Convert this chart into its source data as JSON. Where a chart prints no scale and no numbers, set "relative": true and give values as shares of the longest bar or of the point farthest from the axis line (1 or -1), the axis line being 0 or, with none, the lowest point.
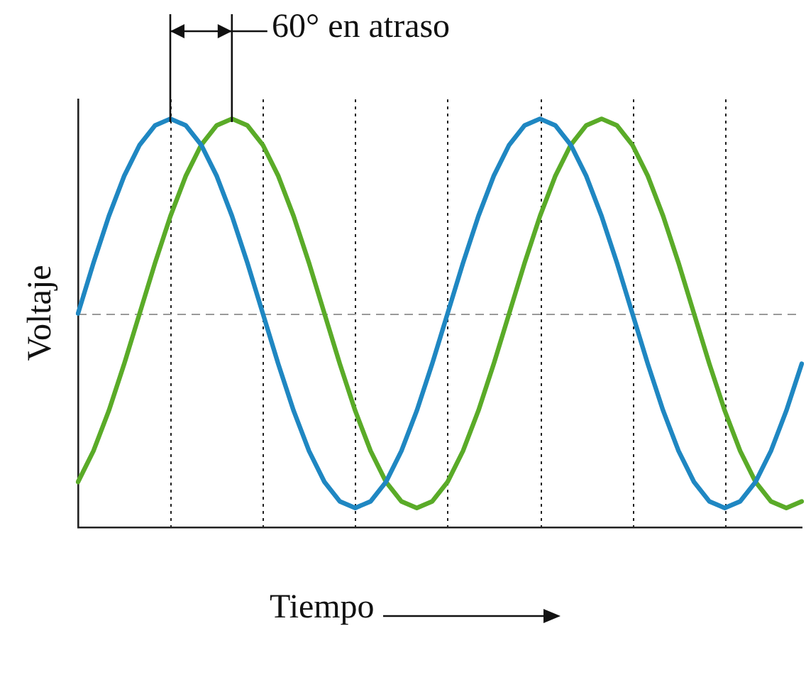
{
  "chart_data": {
    "type": "line",
    "relative": true,
    "xlabel": "Tiempo",
    "ylabel": "Voltaje",
    "annotations": [
      "60° en atraso"
    ],
    "categories": [
      null,
      null,
      null,
      null,
      null,
      null,
      null,
      null,
      null,
      null,
      null,
      null,
      null,
      null,
      null,
      null,
      null,
      null,
      null,
      null,
      null,
      null,
      null,
      null,
      null,
      null,
      null,
      null,
      null,
      null,
      null,
      null,
      null,
      null,
      null,
      null,
      null,
      null,
      null,
      null,
      null,
      null,
      null,
      null,
      null,
      null,
      null,
      null
    ],
    "grid": "x",
    "ref_lines": [
      {
        "axis": "y",
        "value": 0,
        "line_style": "dashed",
        "color": "#9a9a9a"
      }
    ],
    "marker": "none",
    "line_style": "solid",
    "legend": false,
    "series": [
      {
        "color": "#1f87c2",
        "values": [
          0,
          0.259,
          0.5,
          0.707,
          0.866,
          0.966,
          1,
          0.966,
          0.866,
          0.707,
          0.5,
          0.259,
          0,
          -0.259,
          -0.5,
          -0.707,
          -0.866,
          -0.966,
          -1,
          -0.966,
          -0.866,
          -0.707,
          -0.5,
          -0.259,
          0,
          0.259,
          0.5,
          0.707,
          0.866,
          0.966,
          1,
          0.966,
          0.866,
          0.707,
          0.5,
          0.259,
          0,
          -0.259,
          -0.5,
          -0.707,
          -0.866,
          -0.966,
          -1,
          -0.966,
          -0.866,
          -0.707,
          -0.5,
          -0.259
        ]
      },
      {
        "color": "#5aab28",
        "values": [
          -0.866,
          -0.707,
          -0.5,
          -0.259,
          0,
          0.259,
          0.5,
          0.707,
          0.866,
          0.966,
          1,
          0.966,
          0.866,
          0.707,
          0.5,
          0.259,
          0,
          -0.259,
          -0.5,
          -0.707,
          -0.866,
          -0.966,
          -1,
          -0.966,
          -0.866,
          -0.707,
          -0.5,
          -0.259,
          0,
          0.259,
          0.5,
          0.707,
          0.866,
          0.966,
          1,
          0.966,
          0.866,
          0.707,
          0.5,
          0.259,
          0,
          -0.259,
          -0.5,
          -0.707,
          -0.866,
          -0.966,
          -1,
          -0.966
        ]
      }
    ]
  }
}
